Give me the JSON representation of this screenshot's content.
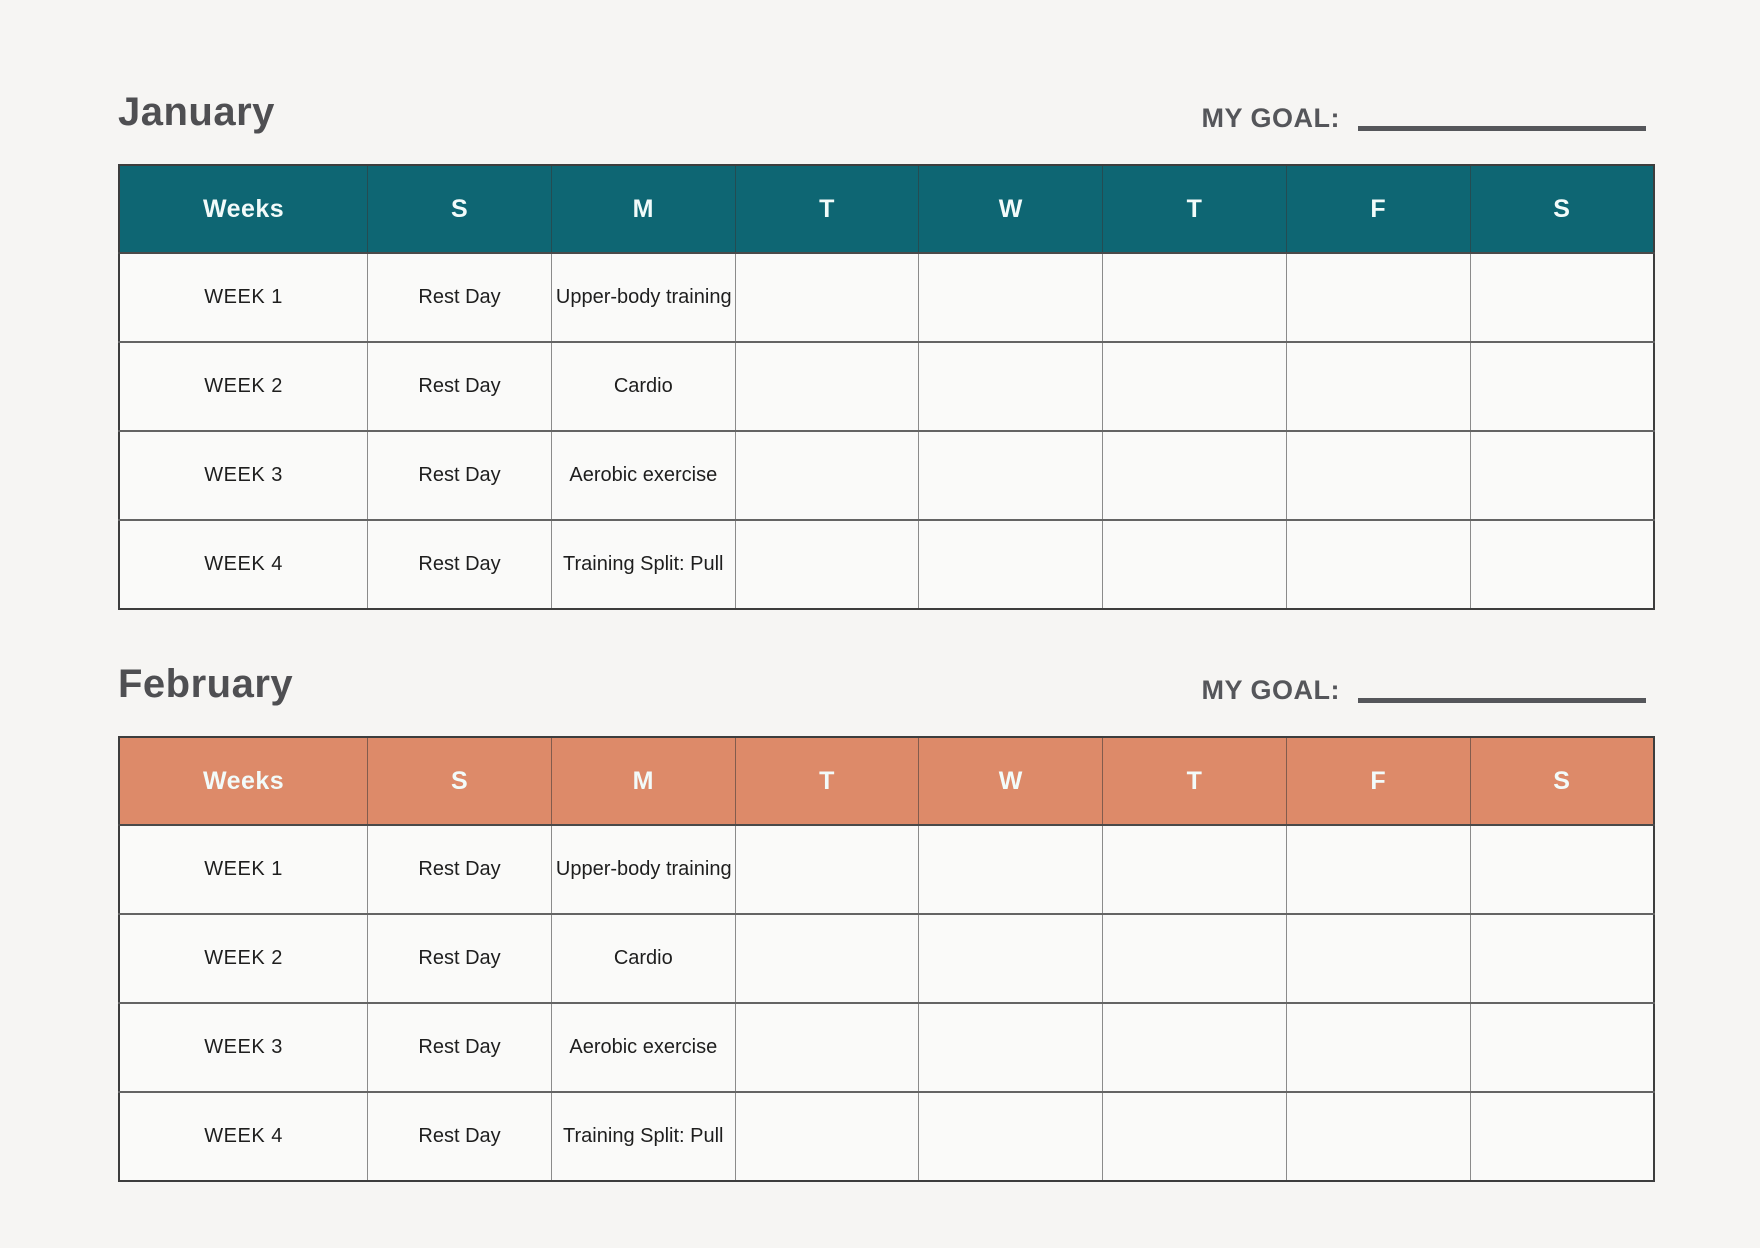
{
  "page": {
    "background": "#f6f5f3"
  },
  "months": [
    {
      "title": "January",
      "goal_label": "MY GOAL:",
      "header_bg": "#0e6673",
      "columns": [
        "Weeks",
        "S",
        "M",
        "T",
        "W",
        "T",
        "F",
        "S"
      ],
      "rows": [
        [
          "WEEK 1",
          "Rest Day",
          "Upper-body training",
          "",
          "",
          "",
          "",
          ""
        ],
        [
          "WEEK 2",
          "Rest Day",
          "Cardio",
          "",
          "",
          "",
          "",
          ""
        ],
        [
          "WEEK 3",
          "Rest Day",
          "Aerobic exercise",
          "",
          "",
          "",
          "",
          ""
        ],
        [
          "WEEK 4",
          "Rest Day",
          "Training Split: Pull",
          "",
          "",
          "",
          "",
          ""
        ]
      ]
    },
    {
      "title": "February",
      "goal_label": "MY GOAL:",
      "header_bg": "#dd8a69",
      "columns": [
        "Weeks",
        "S",
        "M",
        "T",
        "W",
        "T",
        "F",
        "S"
      ],
      "rows": [
        [
          "WEEK 1",
          "Rest Day",
          "Upper-body training",
          "",
          "",
          "",
          "",
          ""
        ],
        [
          "WEEK 2",
          "Rest Day",
          "Cardio",
          "",
          "",
          "",
          "",
          ""
        ],
        [
          "WEEK 3",
          "Rest Day",
          "Aerobic exercise",
          "",
          "",
          "",
          "",
          ""
        ],
        [
          "WEEK 4",
          "Rest Day",
          "Training Split: Pull",
          "",
          "",
          "",
          "",
          ""
        ]
      ]
    }
  ]
}
